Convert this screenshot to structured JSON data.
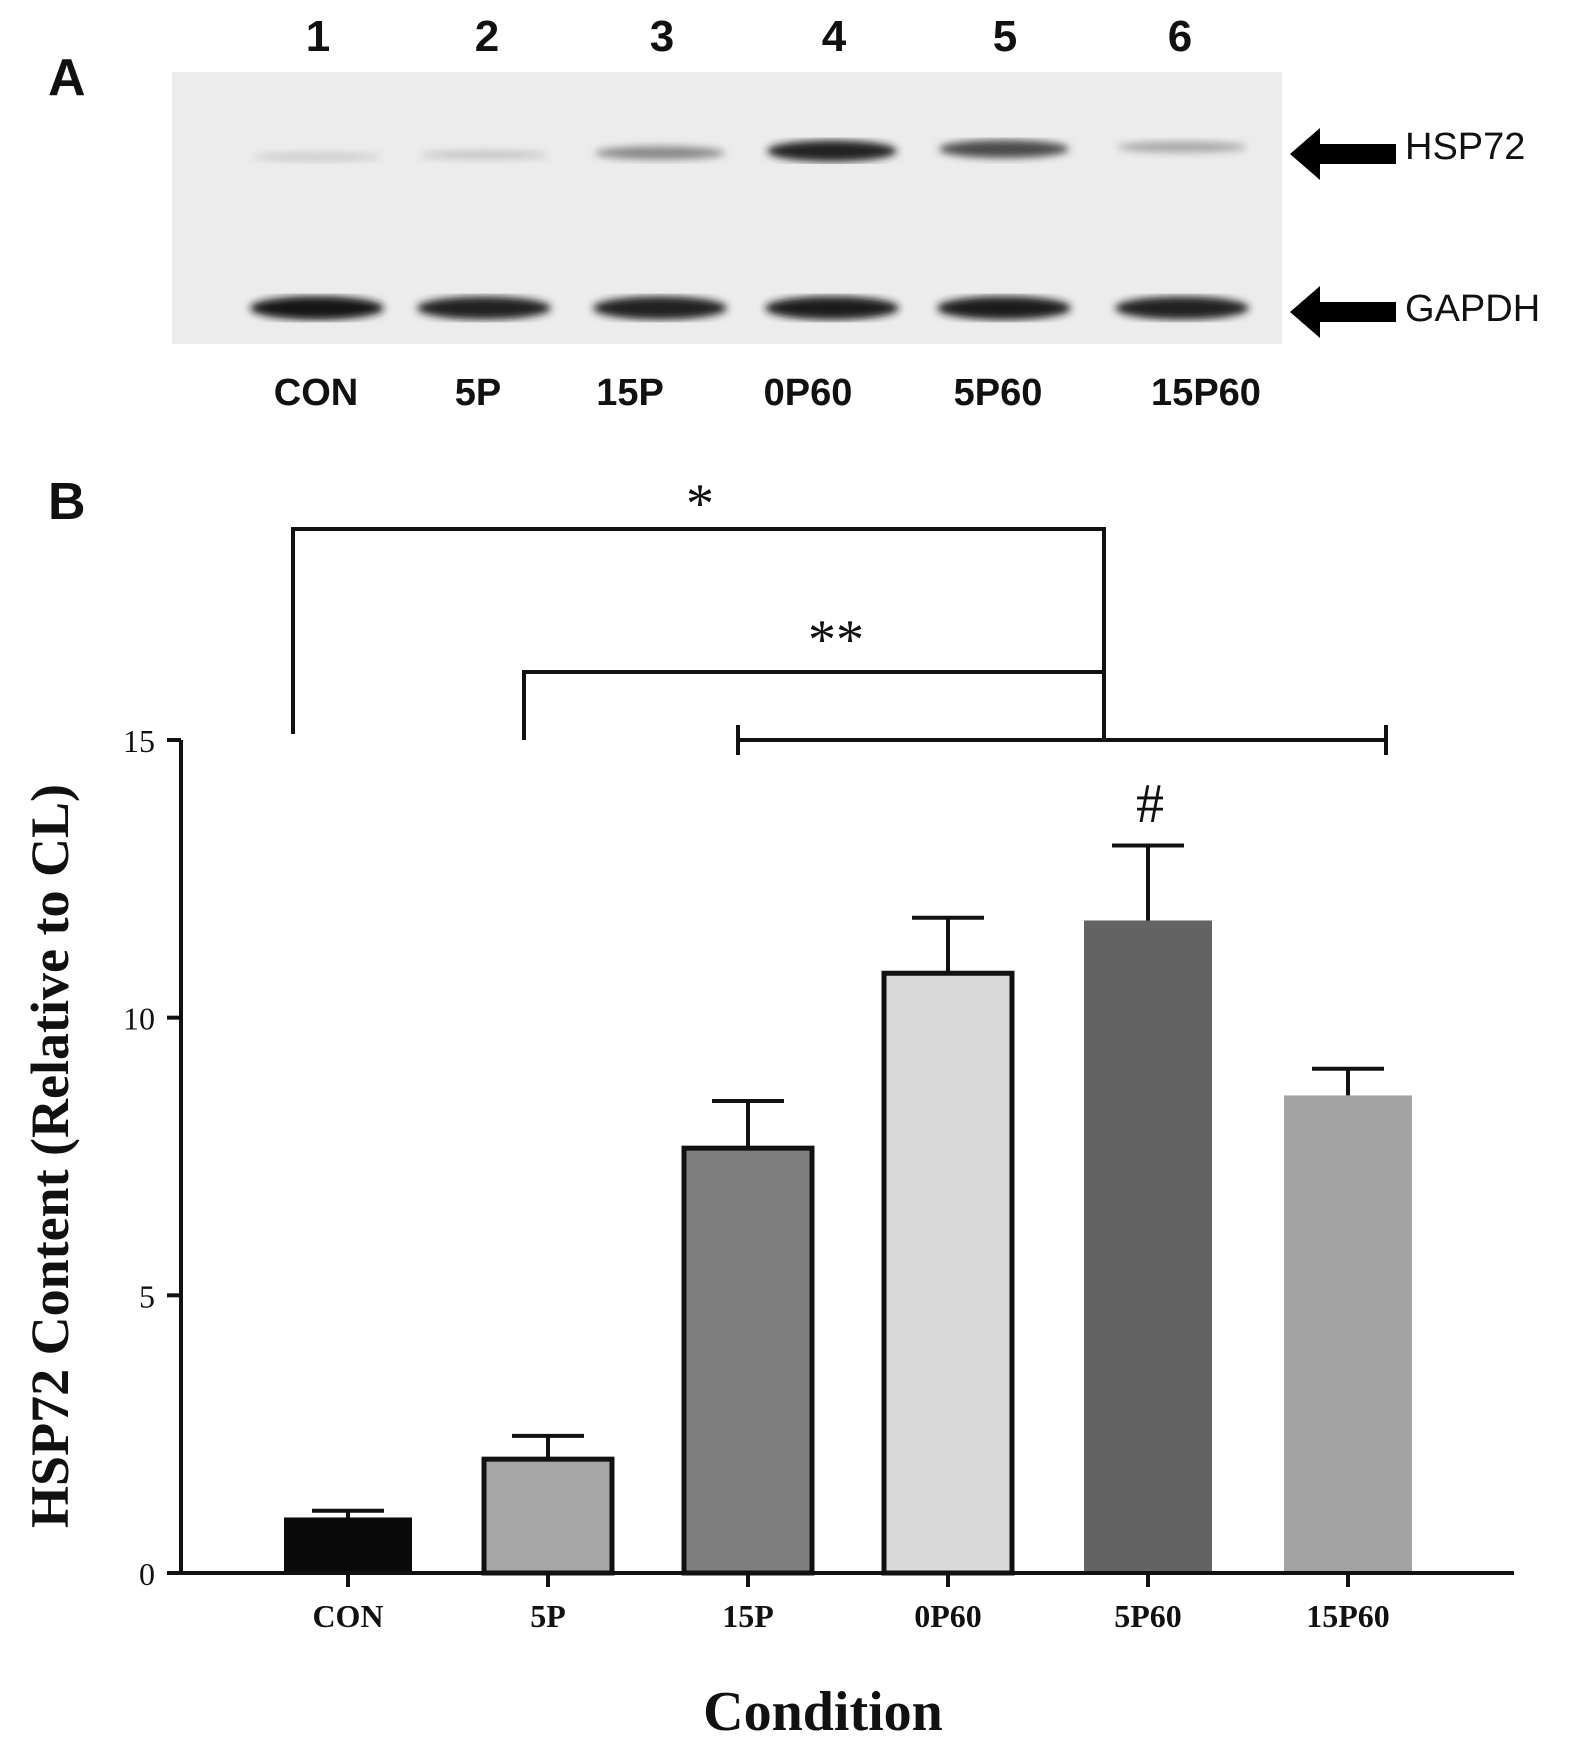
{
  "panel_a": {
    "letter": "A",
    "lane_numbers": [
      "1",
      "2",
      "3",
      "4",
      "5",
      "6"
    ],
    "lane_labels": [
      "CON",
      "5P",
      "15P",
      "0P60",
      "5P60",
      "15P60"
    ],
    "band_labels": {
      "hsp72": "HSP72",
      "gapdh": "GAPDH"
    },
    "hsp72_band_intensity": [
      0.12,
      0.15,
      0.45,
      0.95,
      0.75,
      0.3
    ],
    "gapdh_band_intensity": [
      0.95,
      0.88,
      0.9,
      0.92,
      0.92,
      0.88
    ]
  },
  "panel_b": {
    "letter": "B"
  },
  "chart_data": {
    "type": "bar",
    "categories": [
      "CON",
      "5P",
      "15P",
      "0P60",
      "5P60",
      "15P60"
    ],
    "values": [
      1.0,
      2.05,
      7.65,
      10.8,
      11.75,
      8.6
    ],
    "errors": [
      0.12,
      0.42,
      0.85,
      1.0,
      1.35,
      0.48
    ],
    "bar_colors": [
      "#0a0a0a",
      "#a6a6a6",
      "#7f7f7f",
      "#d9d9d9",
      "#636363",
      "#a3a3a3"
    ],
    "bar_outlined": [
      false,
      true,
      true,
      true,
      false,
      false
    ],
    "xlabel": "Condition",
    "ylabel": "HSP72 Content (Relative to CL)",
    "ylim": [
      0,
      15
    ],
    "yticks": [
      "0",
      "5",
      "10",
      "15"
    ],
    "annotations": [
      {
        "text": "*",
        "comparison": "CON vs 15P–15P60"
      },
      {
        "text": "**",
        "comparison": "5P vs 15P–15P60"
      },
      {
        "text": "#",
        "category": "5P60"
      }
    ]
  }
}
